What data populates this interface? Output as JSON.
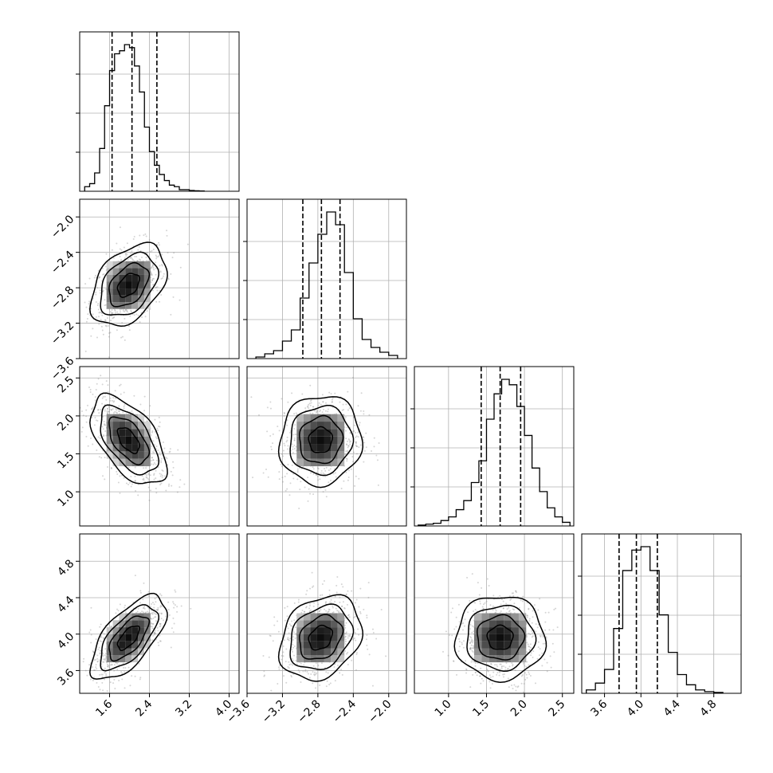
{
  "chart_data": {
    "type": "corner",
    "parameters": 4,
    "grid": true,
    "hist_style": "step",
    "quantile_lines": "dashed",
    "ranges": [
      [
        1.0,
        4.2
      ],
      [
        -3.6,
        -1.8
      ],
      [
        0.55,
        2.65
      ],
      [
        3.35,
        5.1
      ]
    ],
    "ticks": [
      [
        "1.6",
        "2.4",
        "3.2",
        "4.0"
      ],
      [
        "−3.6",
        "−3.2",
        "−2.8",
        "−2.4",
        "−2.0"
      ],
      [
        "1.0",
        "1.5",
        "2.0",
        "2.5"
      ],
      [
        "3.6",
        "4.0",
        "4.4",
        "4.8"
      ]
    ],
    "tick_values": [
      [
        1.6,
        2.4,
        3.2,
        4.0
      ],
      [
        -3.6,
        -3.2,
        -2.8,
        -2.4,
        -2.0
      ],
      [
        1.0,
        1.5,
        2.0,
        2.5
      ],
      [
        3.6,
        4.0,
        4.4,
        4.8
      ]
    ],
    "quantiles": [
      [
        1.65,
        2.05,
        2.55
      ],
      [
        -2.97,
        -2.76,
        -2.55
      ],
      [
        1.43,
        1.68,
        1.95
      ],
      [
        3.76,
        3.95,
        4.18
      ]
    ],
    "histograms": [
      {
        "edges": [
          1.1,
          1.2,
          1.3,
          1.4,
          1.5,
          1.6,
          1.7,
          1.8,
          1.9,
          2.0,
          2.1,
          2.2,
          2.3,
          2.4,
          2.5,
          2.6,
          2.7,
          2.8,
          2.9,
          3.0,
          3.1,
          3.2,
          3.3,
          3.4,
          3.5
        ],
        "counts": [
          3,
          5,
          12,
          28,
          56,
          79,
          90,
          92,
          96,
          94,
          82,
          65,
          42,
          26,
          17,
          11,
          7,
          4,
          3,
          1,
          1,
          0.5,
          0.3,
          0.2
        ]
      },
      {
        "edges": [
          -3.5,
          -3.4,
          -3.3,
          -3.2,
          -3.1,
          -3.0,
          -2.9,
          -2.8,
          -2.7,
          -2.6,
          -2.5,
          -2.4,
          -2.3,
          -2.2,
          -2.1,
          -2.0,
          -1.9
        ],
        "counts": [
          1,
          3,
          5,
          11,
          18,
          38,
          60,
          78,
          92,
          84,
          54,
          25,
          12,
          7,
          4,
          2
        ]
      },
      {
        "edges": [
          0.6,
          0.7,
          0.8,
          0.9,
          1.0,
          1.1,
          1.2,
          1.3,
          1.4,
          1.5,
          1.6,
          1.7,
          1.8,
          1.9,
          2.0,
          2.1,
          2.2,
          2.3,
          2.4,
          2.5,
          2.6
        ],
        "counts": [
          0.5,
          1,
          1.5,
          3,
          5,
          9,
          14,
          24,
          36,
          59,
          73,
          81,
          78,
          66,
          50,
          32,
          19,
          10,
          5,
          2
        ]
      },
      {
        "edges": [
          3.4,
          3.5,
          3.6,
          3.7,
          3.8,
          3.9,
          4.0,
          4.1,
          4.2,
          4.3,
          4.4,
          4.5,
          4.6,
          4.7,
          4.8,
          4.9
        ],
        "counts": [
          2,
          6,
          14,
          38,
          72,
          84,
          86,
          72,
          46,
          24,
          11,
          5,
          2,
          1,
          0.5
        ]
      }
    ],
    "correlations": [
      [
        1,
        0.4,
        -0.55,
        0.65
      ],
      [
        0.4,
        1,
        0.05,
        0.25
      ],
      [
        -0.55,
        0.05,
        1,
        0.0
      ],
      [
        0.65,
        0.25,
        0.0,
        1
      ]
    ],
    "sigmas": [
      0.36,
      0.22,
      0.28,
      0.22
    ],
    "centers": [
      1.98,
      -2.77,
      1.68,
      3.96
    ]
  }
}
